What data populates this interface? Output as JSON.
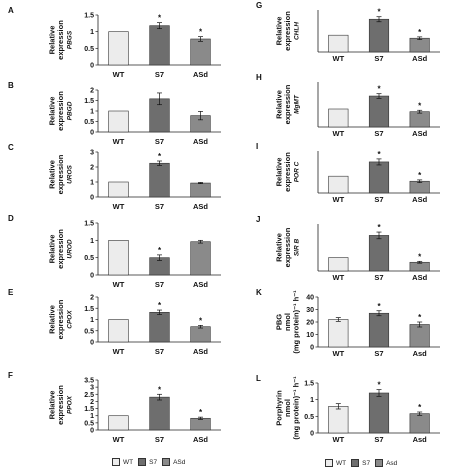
{
  "legends": [
    {
      "entries": [
        "WT",
        "S7",
        "ASd"
      ]
    },
    {
      "entries": [
        "WT",
        "S7",
        "Asd"
      ]
    }
  ],
  "colors": {
    "WT": "#ececec",
    "S7": "#6e6e6e",
    "ASd": "#8a8a8a",
    "axis": "#222222"
  },
  "chart_data": [
    {
      "type": "bar",
      "panel": "A",
      "ylabel": [
        "Relative",
        "expression"
      ],
      "gene": "PBGS",
      "categories": [
        "WT",
        "S7",
        "ASd"
      ],
      "values": [
        1.0,
        1.18,
        0.78
      ],
      "errors": [
        0,
        0.09,
        0.07
      ],
      "significant": [
        false,
        true,
        true
      ],
      "ylim": [
        0,
        1.5
      ],
      "yticks": [
        "0",
        "0.5",
        "1",
        "1.5"
      ]
    },
    {
      "type": "bar",
      "panel": "B",
      "ylabel": [
        "Relative",
        "expression"
      ],
      "gene": "PBGD",
      "categories": [
        "WT",
        "S7",
        "ASd"
      ],
      "values": [
        1.0,
        1.58,
        0.78
      ],
      "errors": [
        0,
        0.28,
        0.2
      ],
      "significant": [
        false,
        false,
        false
      ],
      "ylim": [
        0,
        2.0
      ],
      "yticks": [
        "0",
        "0.5",
        "1",
        "1.5",
        "2"
      ]
    },
    {
      "type": "bar",
      "panel": "C",
      "ylabel": [
        "Relative",
        "expression"
      ],
      "gene": "UROS",
      "categories": [
        "WT",
        "S7",
        "ASd"
      ],
      "values": [
        1.0,
        2.25,
        0.93
      ],
      "errors": [
        0,
        0.15,
        0.04
      ],
      "significant": [
        false,
        true,
        false
      ],
      "ylim": [
        0,
        3
      ],
      "yticks": [
        "0",
        "1",
        "2",
        "3"
      ]
    },
    {
      "type": "bar",
      "panel": "D",
      "ylabel": [
        "Relative",
        "expression"
      ],
      "gene": "UROD",
      "categories": [
        "WT",
        "S7",
        "ASd"
      ],
      "values": [
        1.0,
        0.5,
        0.96
      ],
      "errors": [
        0,
        0.08,
        0.04
      ],
      "significant": [
        false,
        true,
        false
      ],
      "ylim": [
        0,
        1.5
      ],
      "yticks": [
        "0",
        "0.5",
        "1",
        "1.5"
      ]
    },
    {
      "type": "bar",
      "panel": "E",
      "ylabel": [
        "Relative",
        "expression"
      ],
      "gene": "CPOX",
      "categories": [
        "WT",
        "S7",
        "ASd"
      ],
      "values": [
        1.0,
        1.32,
        0.68
      ],
      "errors": [
        0,
        0.1,
        0.06
      ],
      "significant": [
        false,
        true,
        true
      ],
      "ylim": [
        0,
        2.0
      ],
      "yticks": [
        "0",
        "0.5",
        "1",
        "1.5",
        "2"
      ]
    },
    {
      "type": "bar",
      "panel": "F",
      "ylabel": [
        "Relative",
        "expression"
      ],
      "gene": "PPOX",
      "categories": [
        "WT",
        "S7",
        "ASd"
      ],
      "values": [
        1.0,
        2.3,
        0.82
      ],
      "errors": [
        0,
        0.2,
        0.08
      ],
      "significant": [
        false,
        true,
        true
      ],
      "ylim": [
        0,
        3.5
      ],
      "yticks": [
        "0",
        "0.5",
        "1",
        "1.5",
        "2",
        "2.5",
        "3",
        "3.5"
      ]
    },
    {
      "type": "bar",
      "panel": "G",
      "ylabel": [
        "Relative",
        "expression"
      ],
      "gene": "CHLH",
      "categories": [
        "WT",
        "S7",
        "ASd"
      ],
      "values": [
        1.0,
        1.95,
        0.82
      ],
      "errors": [
        0,
        0.15,
        0.08
      ],
      "significant": [
        false,
        true,
        true
      ],
      "ylim": [
        0,
        2.5
      ],
      "yticks": []
    },
    {
      "type": "bar",
      "panel": "H",
      "ylabel": [
        "Relative",
        "expression"
      ],
      "gene": "MgMT",
      "categories": [
        "WT",
        "S7",
        "ASd"
      ],
      "values": [
        1.0,
        1.72,
        0.85
      ],
      "errors": [
        0,
        0.13,
        0.08
      ],
      "significant": [
        false,
        true,
        true
      ],
      "ylim": [
        0,
        2.5
      ],
      "yticks": []
    },
    {
      "type": "bar",
      "panel": "I",
      "ylabel": [
        "Relative",
        "expression"
      ],
      "gene": "POR C",
      "categories": [
        "WT",
        "S7",
        "ASd"
      ],
      "values": [
        1.0,
        1.85,
        0.7
      ],
      "errors": [
        0,
        0.18,
        0.08
      ],
      "significant": [
        false,
        true,
        true
      ],
      "ylim": [
        0,
        2.5
      ],
      "yticks": []
    },
    {
      "type": "bar",
      "panel": "J",
      "ylabel": [
        "Relative",
        "expression"
      ],
      "gene": "SIR B",
      "categories": [
        "WT",
        "S7",
        "ASd"
      ],
      "values": [
        1.0,
        2.65,
        0.65
      ],
      "errors": [
        0,
        0.25,
        0.07
      ],
      "significant": [
        false,
        true,
        true
      ],
      "ylim": [
        0,
        3.5
      ],
      "yticks": []
    },
    {
      "type": "bar",
      "panel": "K",
      "ylabel": [
        "PBG",
        "nmol",
        "(mg protein)⁻¹ h⁻¹"
      ],
      "gene": "",
      "categories": [
        "WT",
        "S7",
        "Asd"
      ],
      "values": [
        22,
        27,
        18
      ],
      "errors": [
        1.5,
        2,
        2
      ],
      "significant": [
        false,
        true,
        true
      ],
      "ylim": [
        0,
        40
      ],
      "yticks": [
        "0",
        "10",
        "20",
        "30",
        "40"
      ]
    },
    {
      "type": "bar",
      "panel": "L",
      "ylabel": [
        "Porphyrin",
        "nmol",
        "(mg protein)⁻¹ h⁻¹"
      ],
      "gene": "",
      "categories": [
        "WT",
        "S7",
        "Asd"
      ],
      "values": [
        0.8,
        1.2,
        0.58
      ],
      "errors": [
        0.08,
        0.1,
        0.05
      ],
      "significant": [
        false,
        true,
        true
      ],
      "ylim": [
        0,
        1.5
      ],
      "yticks": [
        "0",
        "0.5",
        "1",
        "1.5"
      ]
    }
  ]
}
